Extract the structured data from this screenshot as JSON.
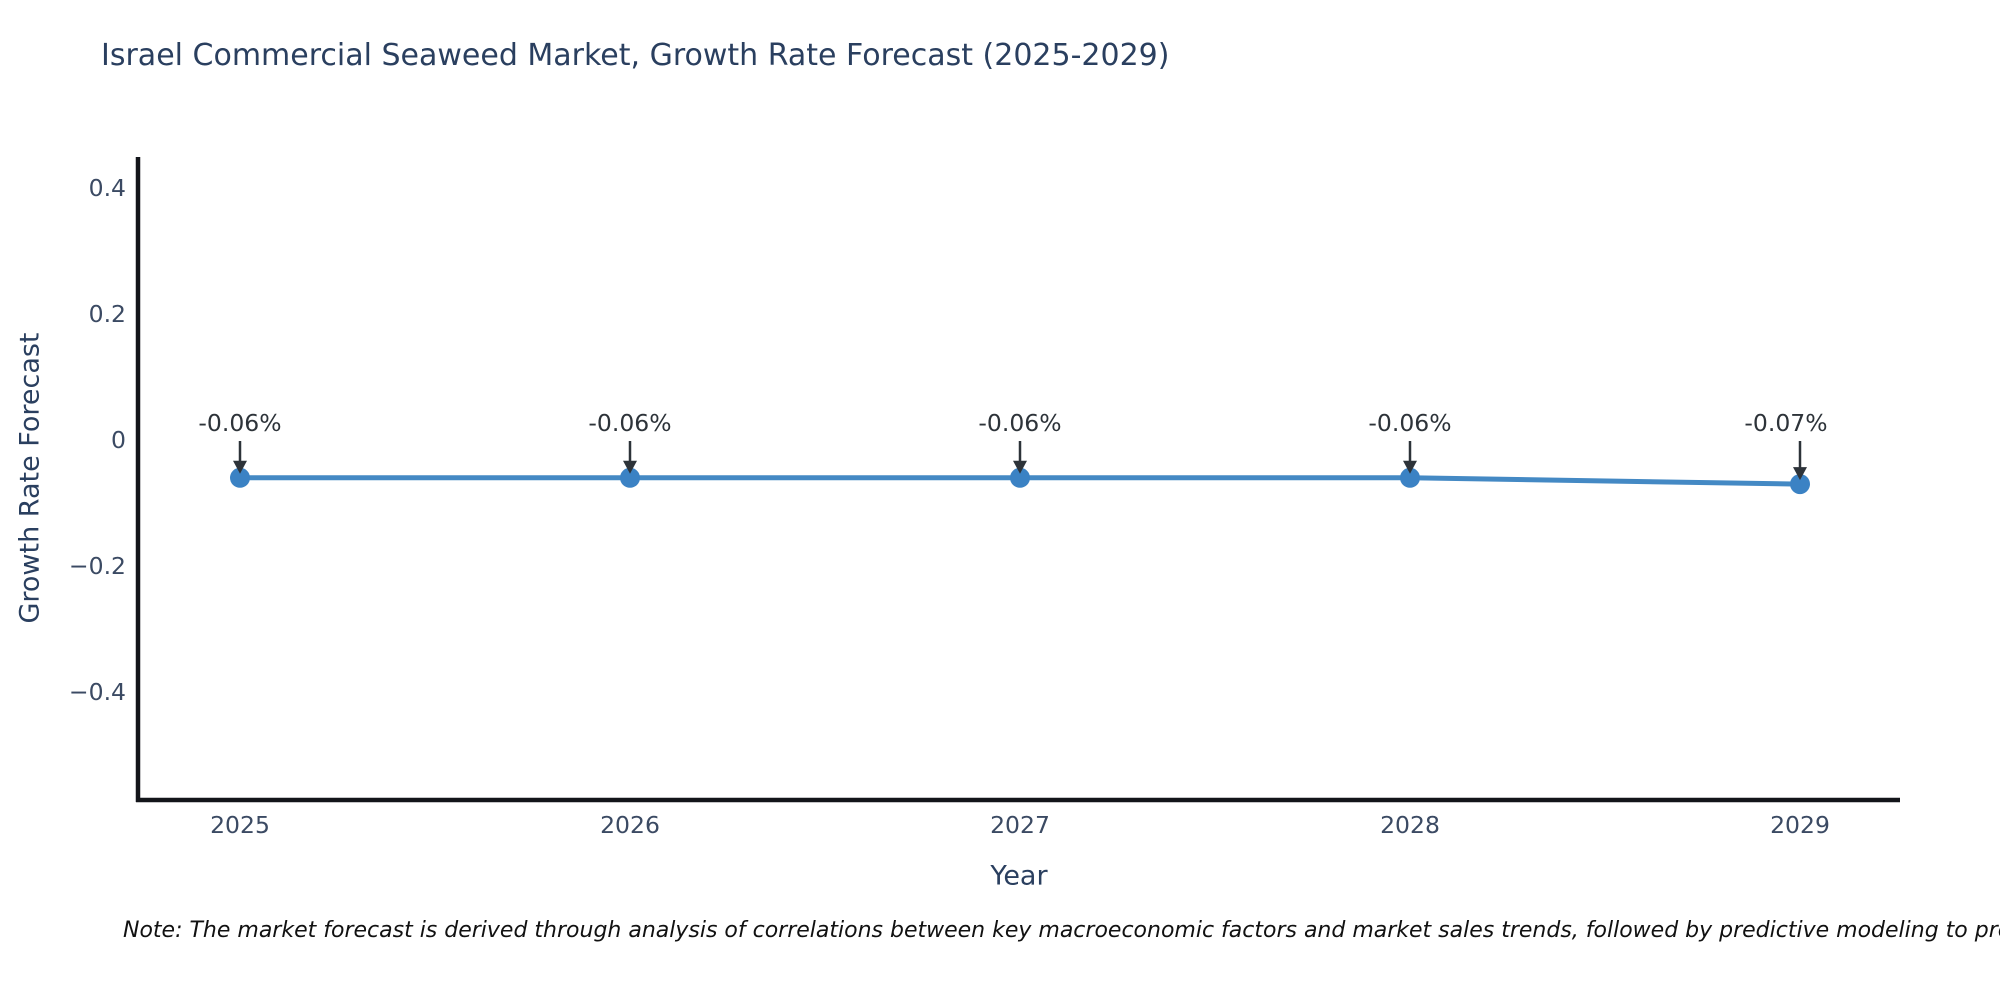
{
  "title": "Israel Commercial Seaweed Market, Growth Rate Forecast (2025-2029)",
  "note": "Note: The market forecast is derived through analysis of correlations between key macroeconomic factors and market sales trends, followed by predictive modeling to project future sales",
  "chart_data": {
    "type": "line",
    "title": "Israel Commercial Seaweed Market, Growth Rate Forecast (2025-2029)",
    "xlabel": "Year",
    "ylabel": "Growth Rate Forecast",
    "x": [
      2025,
      2026,
      2027,
      2028,
      2029
    ],
    "values": [
      -0.06,
      -0.06,
      -0.06,
      -0.06,
      -0.07
    ],
    "point_labels": [
      "-0.06%",
      "-0.06%",
      "-0.06%",
      "-0.06%",
      "-0.07%"
    ],
    "x_tick_labels": [
      "2025",
      "2026",
      "2027",
      "2028",
      "2029"
    ],
    "y_ticks": [
      0.4,
      0.2,
      0,
      -0.2,
      -0.4
    ],
    "y_tick_labels": [
      "0.4",
      "0.2",
      "0",
      "−0.2",
      "−0.4"
    ],
    "ylim": [
      -0.57,
      0.45
    ],
    "grid": false,
    "legend": false,
    "annotation_arrows": true,
    "colors": {
      "line": "#4489c4",
      "marker": "#3b82c4",
      "axis": "#13151a",
      "tick_text": "#3b4a63",
      "annotation_text": "#2d3339",
      "title_text": "#2a3f5f"
    }
  }
}
